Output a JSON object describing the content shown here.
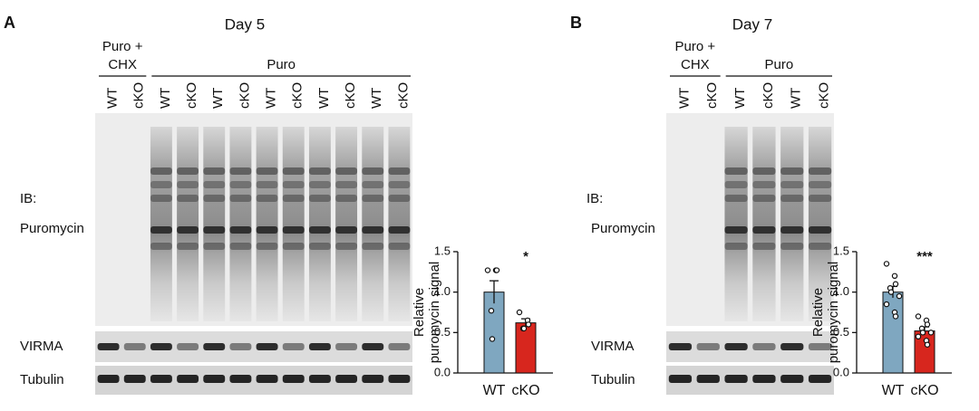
{
  "panels": [
    {
      "letter": "A",
      "title": "Day 5",
      "groups": [
        {
          "label": [
            "Puro +",
            "CHX"
          ],
          "lanes": [
            "WT",
            "cKO"
          ]
        },
        {
          "label": [
            "Puro"
          ],
          "lanes": [
            "WT",
            "cKO",
            "WT",
            "cKO",
            "WT",
            "cKO",
            "WT",
            "cKO",
            "WT",
            "cKO"
          ]
        }
      ],
      "ib_label": "IB:",
      "blots": [
        "Puromycin",
        "VIRMA",
        "Tubulin"
      ]
    },
    {
      "letter": "B",
      "title": "Day 7",
      "groups": [
        {
          "label": [
            "Puro +",
            "CHX"
          ],
          "lanes": [
            "WT",
            "cKO"
          ]
        },
        {
          "label": [
            "Puro"
          ],
          "lanes": [
            "WT",
            "cKO",
            "WT",
            "cKO"
          ]
        }
      ],
      "ib_label": "IB:",
      "blots": [
        "Puromycin",
        "VIRMA",
        "Tubulin"
      ]
    }
  ],
  "chart_data": [
    {
      "type": "bar",
      "ylabel": [
        "Relative",
        "puromycin signal"
      ],
      "categories": [
        "WT",
        "cKO"
      ],
      "values": [
        1.0,
        0.62
      ],
      "errors": [
        0.14,
        0.05
      ],
      "colors": [
        "#7fa7c0",
        "#d7261e"
      ],
      "points": [
        [
          1.27,
          1.27,
          1.27,
          0.77,
          0.42
        ],
        [
          0.75,
          0.65,
          0.6,
          0.55,
          0.55
        ]
      ],
      "annotation": "*",
      "ylim": [
        0,
        1.5
      ],
      "yticks": [
        {
          "value": 0,
          "label": "0.0"
        },
        0.5,
        {
          "value": 1,
          "label": "1.0"
        },
        1.5
      ]
    },
    {
      "type": "bar",
      "ylabel": [
        "Relative",
        "puromycin signal"
      ],
      "categories": [
        "WT",
        "cKO"
      ],
      "values": [
        1.0,
        0.52
      ],
      "errors": [
        0.07,
        0.05
      ],
      "colors": [
        "#7fa7c0",
        "#d7261e"
      ],
      "points": [
        [
          1.35,
          1.2,
          1.1,
          1.05,
          1.0,
          0.95,
          0.85,
          0.75,
          0.7
        ],
        [
          0.7,
          0.65,
          0.6,
          0.55,
          0.5,
          0.5,
          0.45,
          0.4,
          0.35
        ]
      ],
      "annotation": "***",
      "ylim": [
        0,
        1.5
      ],
      "yticks": [
        {
          "value": 0,
          "label": "0.0"
        },
        0.5,
        {
          "value": 1,
          "label": "1.0"
        },
        1.5
      ]
    }
  ]
}
